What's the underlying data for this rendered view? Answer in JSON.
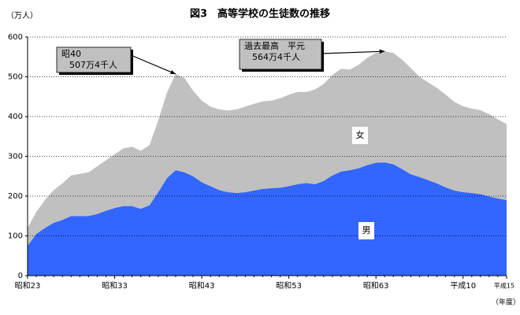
{
  "chart_data": {
    "type": "stacked-area",
    "title": "図3　高等学校の生徒数の推移",
    "y_unit": "（万人）",
    "x_unit": "（年度）",
    "categories": [
      "昭和23",
      null,
      null,
      null,
      null,
      null,
      null,
      null,
      null,
      null,
      "昭和33",
      null,
      null,
      null,
      null,
      null,
      null,
      null,
      null,
      null,
      "昭和43",
      null,
      null,
      null,
      null,
      null,
      null,
      null,
      null,
      null,
      "昭和53",
      null,
      null,
      null,
      null,
      null,
      null,
      null,
      null,
      null,
      "昭和63",
      null,
      null,
      null,
      null,
      null,
      null,
      null,
      null,
      null,
      "平成10",
      null,
      null,
      null,
      null,
      "平成15"
    ],
    "series": [
      {
        "name": "男",
        "color": "#3366ff",
        "values": [
          75,
          105,
          120,
          133,
          140,
          150,
          150,
          150,
          155,
          163,
          170,
          175,
          175,
          168,
          177,
          210,
          245,
          265,
          260,
          250,
          235,
          225,
          215,
          210,
          208,
          210,
          214,
          218,
          220,
          221,
          225,
          230,
          233,
          230,
          238,
          252,
          262,
          265,
          270,
          278,
          284,
          285,
          280,
          268,
          255,
          248,
          240,
          232,
          222,
          214,
          210,
          208,
          205,
          199,
          194,
          190
        ]
      },
      {
        "name": "女",
        "color": "#c0c0c0",
        "values": [
          45,
          55,
          70,
          82,
          92,
          102,
          106,
          110,
          120,
          127,
          135,
          145,
          149,
          146,
          151,
          180,
          215,
          242,
          237,
          215,
          205,
          200,
          203,
          205,
          210,
          215,
          218,
          220,
          220,
          225,
          230,
          232,
          229,
          238,
          244,
          253,
          258,
          253,
          260,
          270,
          276,
          279,
          280,
          275,
          267,
          252,
          246,
          240,
          233,
          223,
          216,
          212,
          211,
          207,
          199,
          191
        ]
      }
    ],
    "ylim": [
      0,
      600
    ],
    "yticks": [
      0,
      100,
      200,
      300,
      400,
      500,
      600
    ],
    "grid": true,
    "annotations": [
      {
        "lines": [
          "昭40",
          "507万4千人"
        ],
        "index": 17
      },
      {
        "lines": [
          "過去最高　平元",
          "564万4千人"
        ],
        "index": 41
      }
    ]
  }
}
